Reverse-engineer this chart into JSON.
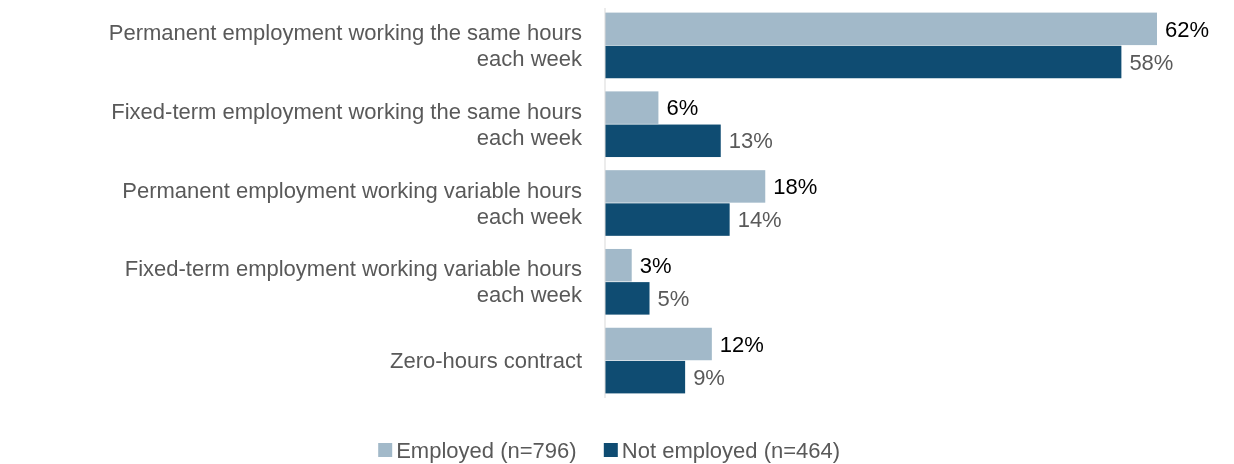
{
  "chart_data": {
    "type": "bar",
    "orientation": "horizontal",
    "categories": [
      "Permanent employment working the same hours each week",
      "Fixed-term employment working the same hours each week",
      "Permanent employment working variable hours each week",
      "Fixed-term employment working variable hours each week",
      "Zero-hours contract"
    ],
    "series": [
      {
        "name": "Employed (n=796)",
        "color": "#a2b9c9",
        "values": [
          62,
          6,
          18,
          3,
          12
        ],
        "value_labels": [
          "62%",
          "6%",
          "18%",
          "3%",
          "12%"
        ]
      },
      {
        "name": "Not employed (n=464)",
        "color": "#0f4c72",
        "values": [
          58,
          13,
          14,
          5,
          9
        ],
        "value_labels": [
          "58%",
          "13%",
          "14%",
          "5%",
          "9%"
        ]
      }
    ],
    "legend": "bottom",
    "grid": false
  }
}
